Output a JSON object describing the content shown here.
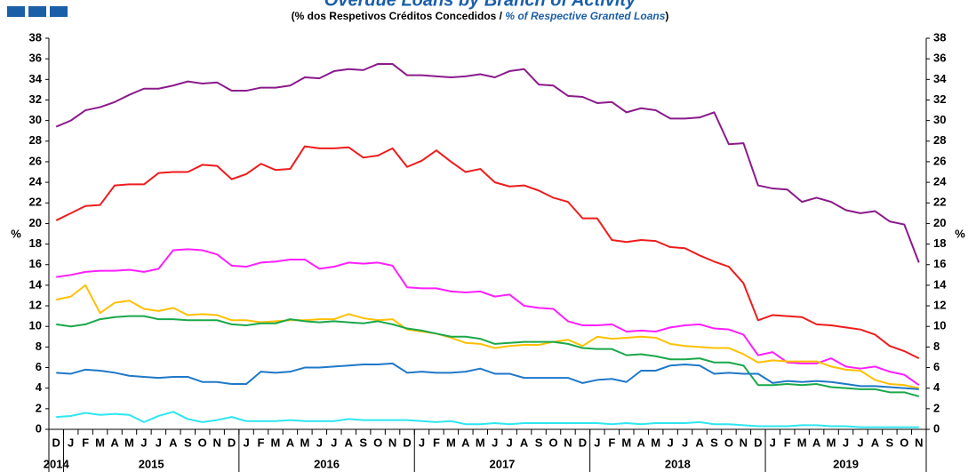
{
  "chart_data": {
    "type": "line",
    "title": "Overdue Loans by Branch of Activity",
    "subtitle_parts": [
      "(% dos Respetivos  Créditos Concedidos  / ",
      "% of Respective Granted Loans",
      ")"
    ],
    "ylabel": "%",
    "categories": [
      "D",
      "J",
      "F",
      "M",
      "A",
      "M",
      "J",
      "J",
      "A",
      "S",
      "O",
      "N",
      "D",
      "J",
      "F",
      "M",
      "A",
      "M",
      "J",
      "J",
      "A",
      "S",
      "O",
      "N",
      "D",
      "J",
      "F",
      "M",
      "A",
      "M",
      "J",
      "J",
      "A",
      "S",
      "O",
      "N",
      "D",
      "J",
      "F",
      "M",
      "A",
      "M",
      "J",
      "J",
      "A",
      "S",
      "O",
      "N",
      "D",
      "J",
      "F",
      "M",
      "A",
      "M",
      "J",
      "J",
      "A",
      "S",
      "O",
      "N"
    ],
    "years": [
      "2014",
      "2015",
      "2016",
      "2017",
      "2018",
      "2019"
    ],
    "ylim": [
      0,
      38
    ],
    "yticks": [
      0,
      2,
      4,
      6,
      8,
      10,
      12,
      14,
      16,
      18,
      20,
      22,
      24,
      26,
      28,
      30,
      32,
      34,
      36,
      38
    ],
    "grid": false,
    "series": [
      {
        "color": "#8b1a8b",
        "values": [
          29.4,
          30.0,
          31.0,
          31.3,
          31.8,
          32.5,
          33.1,
          33.1,
          33.4,
          33.8,
          33.6,
          33.7,
          32.9,
          32.9,
          33.2,
          33.2,
          33.4,
          34.2,
          34.1,
          34.8,
          35.0,
          34.9,
          35.5,
          35.5,
          34.4,
          34.4,
          34.3,
          34.2,
          34.3,
          34.5,
          34.2,
          34.8,
          35.0,
          33.5,
          33.4,
          32.4,
          32.3,
          31.7,
          31.8,
          30.8,
          31.2,
          31.0,
          30.2,
          30.2,
          30.3,
          30.8,
          27.7,
          27.8,
          23.7,
          23.4,
          23.3,
          22.1,
          22.5,
          22.1,
          21.3,
          21.0,
          21.2,
          20.2,
          19.9,
          16.2
        ]
      },
      {
        "color": "#ee1c1c",
        "values": [
          20.3,
          21.0,
          21.7,
          21.8,
          23.7,
          23.8,
          23.8,
          24.9,
          25.0,
          25.0,
          25.7,
          25.6,
          24.3,
          24.8,
          25.8,
          25.2,
          25.3,
          27.5,
          27.3,
          27.3,
          27.4,
          26.4,
          26.6,
          27.3,
          25.5,
          26.1,
          27.1,
          26.0,
          25.0,
          25.3,
          24.0,
          23.6,
          23.7,
          23.2,
          22.5,
          22.1,
          20.5,
          20.5,
          18.4,
          18.2,
          18.4,
          18.3,
          17.7,
          17.6,
          16.9,
          16.3,
          15.8,
          14.2,
          10.6,
          11.1,
          11.0,
          10.9,
          10.2,
          10.1,
          9.9,
          9.7,
          9.2,
          8.1,
          7.6,
          6.9
        ]
      },
      {
        "color": "#ff1fff",
        "values": [
          14.8,
          15.0,
          15.3,
          15.4,
          15.4,
          15.5,
          15.3,
          15.6,
          17.4,
          17.5,
          17.4,
          17.0,
          15.9,
          15.8,
          16.2,
          16.3,
          16.5,
          16.5,
          15.6,
          15.8,
          16.2,
          16.1,
          16.2,
          15.9,
          13.8,
          13.7,
          13.7,
          13.4,
          13.3,
          13.4,
          12.9,
          13.1,
          12.0,
          11.8,
          11.7,
          10.5,
          10.1,
          10.1,
          10.2,
          9.5,
          9.6,
          9.5,
          9.9,
          10.1,
          10.2,
          9.8,
          9.7,
          9.2,
          7.2,
          7.5,
          6.5,
          6.4,
          6.4,
          6.9,
          6.1,
          5.9,
          6.1,
          5.6,
          5.3,
          4.3
        ]
      },
      {
        "color": "#ffc000",
        "values": [
          12.6,
          12.9,
          14.0,
          11.3,
          12.3,
          12.5,
          11.7,
          11.5,
          11.8,
          11.1,
          11.2,
          11.1,
          10.6,
          10.6,
          10.4,
          10.5,
          10.6,
          10.6,
          10.7,
          10.7,
          11.2,
          10.8,
          10.6,
          10.7,
          9.7,
          9.5,
          9.3,
          8.9,
          8.4,
          8.3,
          7.9,
          8.1,
          8.2,
          8.2,
          8.5,
          8.7,
          8.1,
          9.0,
          8.8,
          8.9,
          9.0,
          8.9,
          8.3,
          8.1,
          8.0,
          7.9,
          7.9,
          7.3,
          6.5,
          6.7,
          6.6,
          6.6,
          6.6,
          6.1,
          5.8,
          5.7,
          4.8,
          4.4,
          4.3,
          4.0
        ]
      },
      {
        "color": "#1aa84a",
        "values": [
          10.2,
          10.0,
          10.2,
          10.7,
          10.9,
          11.0,
          11.0,
          10.7,
          10.7,
          10.6,
          10.6,
          10.6,
          10.2,
          10.1,
          10.3,
          10.3,
          10.7,
          10.5,
          10.4,
          10.5,
          10.4,
          10.3,
          10.5,
          10.2,
          9.8,
          9.6,
          9.3,
          9.0,
          9.0,
          8.8,
          8.3,
          8.4,
          8.5,
          8.5,
          8.5,
          8.3,
          7.9,
          7.8,
          7.8,
          7.2,
          7.3,
          7.1,
          6.8,
          6.8,
          6.9,
          6.5,
          6.5,
          6.2,
          4.3,
          4.3,
          4.4,
          4.3,
          4.4,
          4.1,
          4.0,
          3.9,
          3.9,
          3.6,
          3.6,
          3.2
        ]
      },
      {
        "color": "#1f78c8",
        "values": [
          5.5,
          5.4,
          5.8,
          5.7,
          5.5,
          5.2,
          5.1,
          5.0,
          5.1,
          5.1,
          4.6,
          4.6,
          4.4,
          4.4,
          5.6,
          5.5,
          5.6,
          6.0,
          6.0,
          6.1,
          6.2,
          6.3,
          6.3,
          6.4,
          5.5,
          5.6,
          5.5,
          5.5,
          5.6,
          5.9,
          5.4,
          5.4,
          5.0,
          5.0,
          5.0,
          5.0,
          4.5,
          4.8,
          4.9,
          4.6,
          5.7,
          5.7,
          6.2,
          6.3,
          6.2,
          5.4,
          5.5,
          5.4,
          5.4,
          4.5,
          4.7,
          4.6,
          4.7,
          4.6,
          4.4,
          4.2,
          4.2,
          4.1,
          4.0,
          3.9
        ]
      },
      {
        "color": "#2ee6f0",
        "values": [
          1.2,
          1.3,
          1.6,
          1.4,
          1.5,
          1.4,
          0.7,
          1.3,
          1.7,
          1.0,
          0.7,
          0.9,
          1.2,
          0.8,
          0.8,
          0.8,
          0.9,
          0.8,
          0.8,
          0.8,
          1.0,
          0.9,
          0.9,
          0.9,
          0.9,
          0.8,
          0.7,
          0.8,
          0.5,
          0.5,
          0.6,
          0.5,
          0.6,
          0.6,
          0.6,
          0.6,
          0.6,
          0.6,
          0.5,
          0.6,
          0.5,
          0.6,
          0.6,
          0.6,
          0.7,
          0.5,
          0.5,
          0.4,
          0.3,
          0.3,
          0.3,
          0.4,
          0.4,
          0.3,
          0.3,
          0.2,
          0.2,
          0.2,
          0.2,
          0.2
        ]
      }
    ]
  }
}
